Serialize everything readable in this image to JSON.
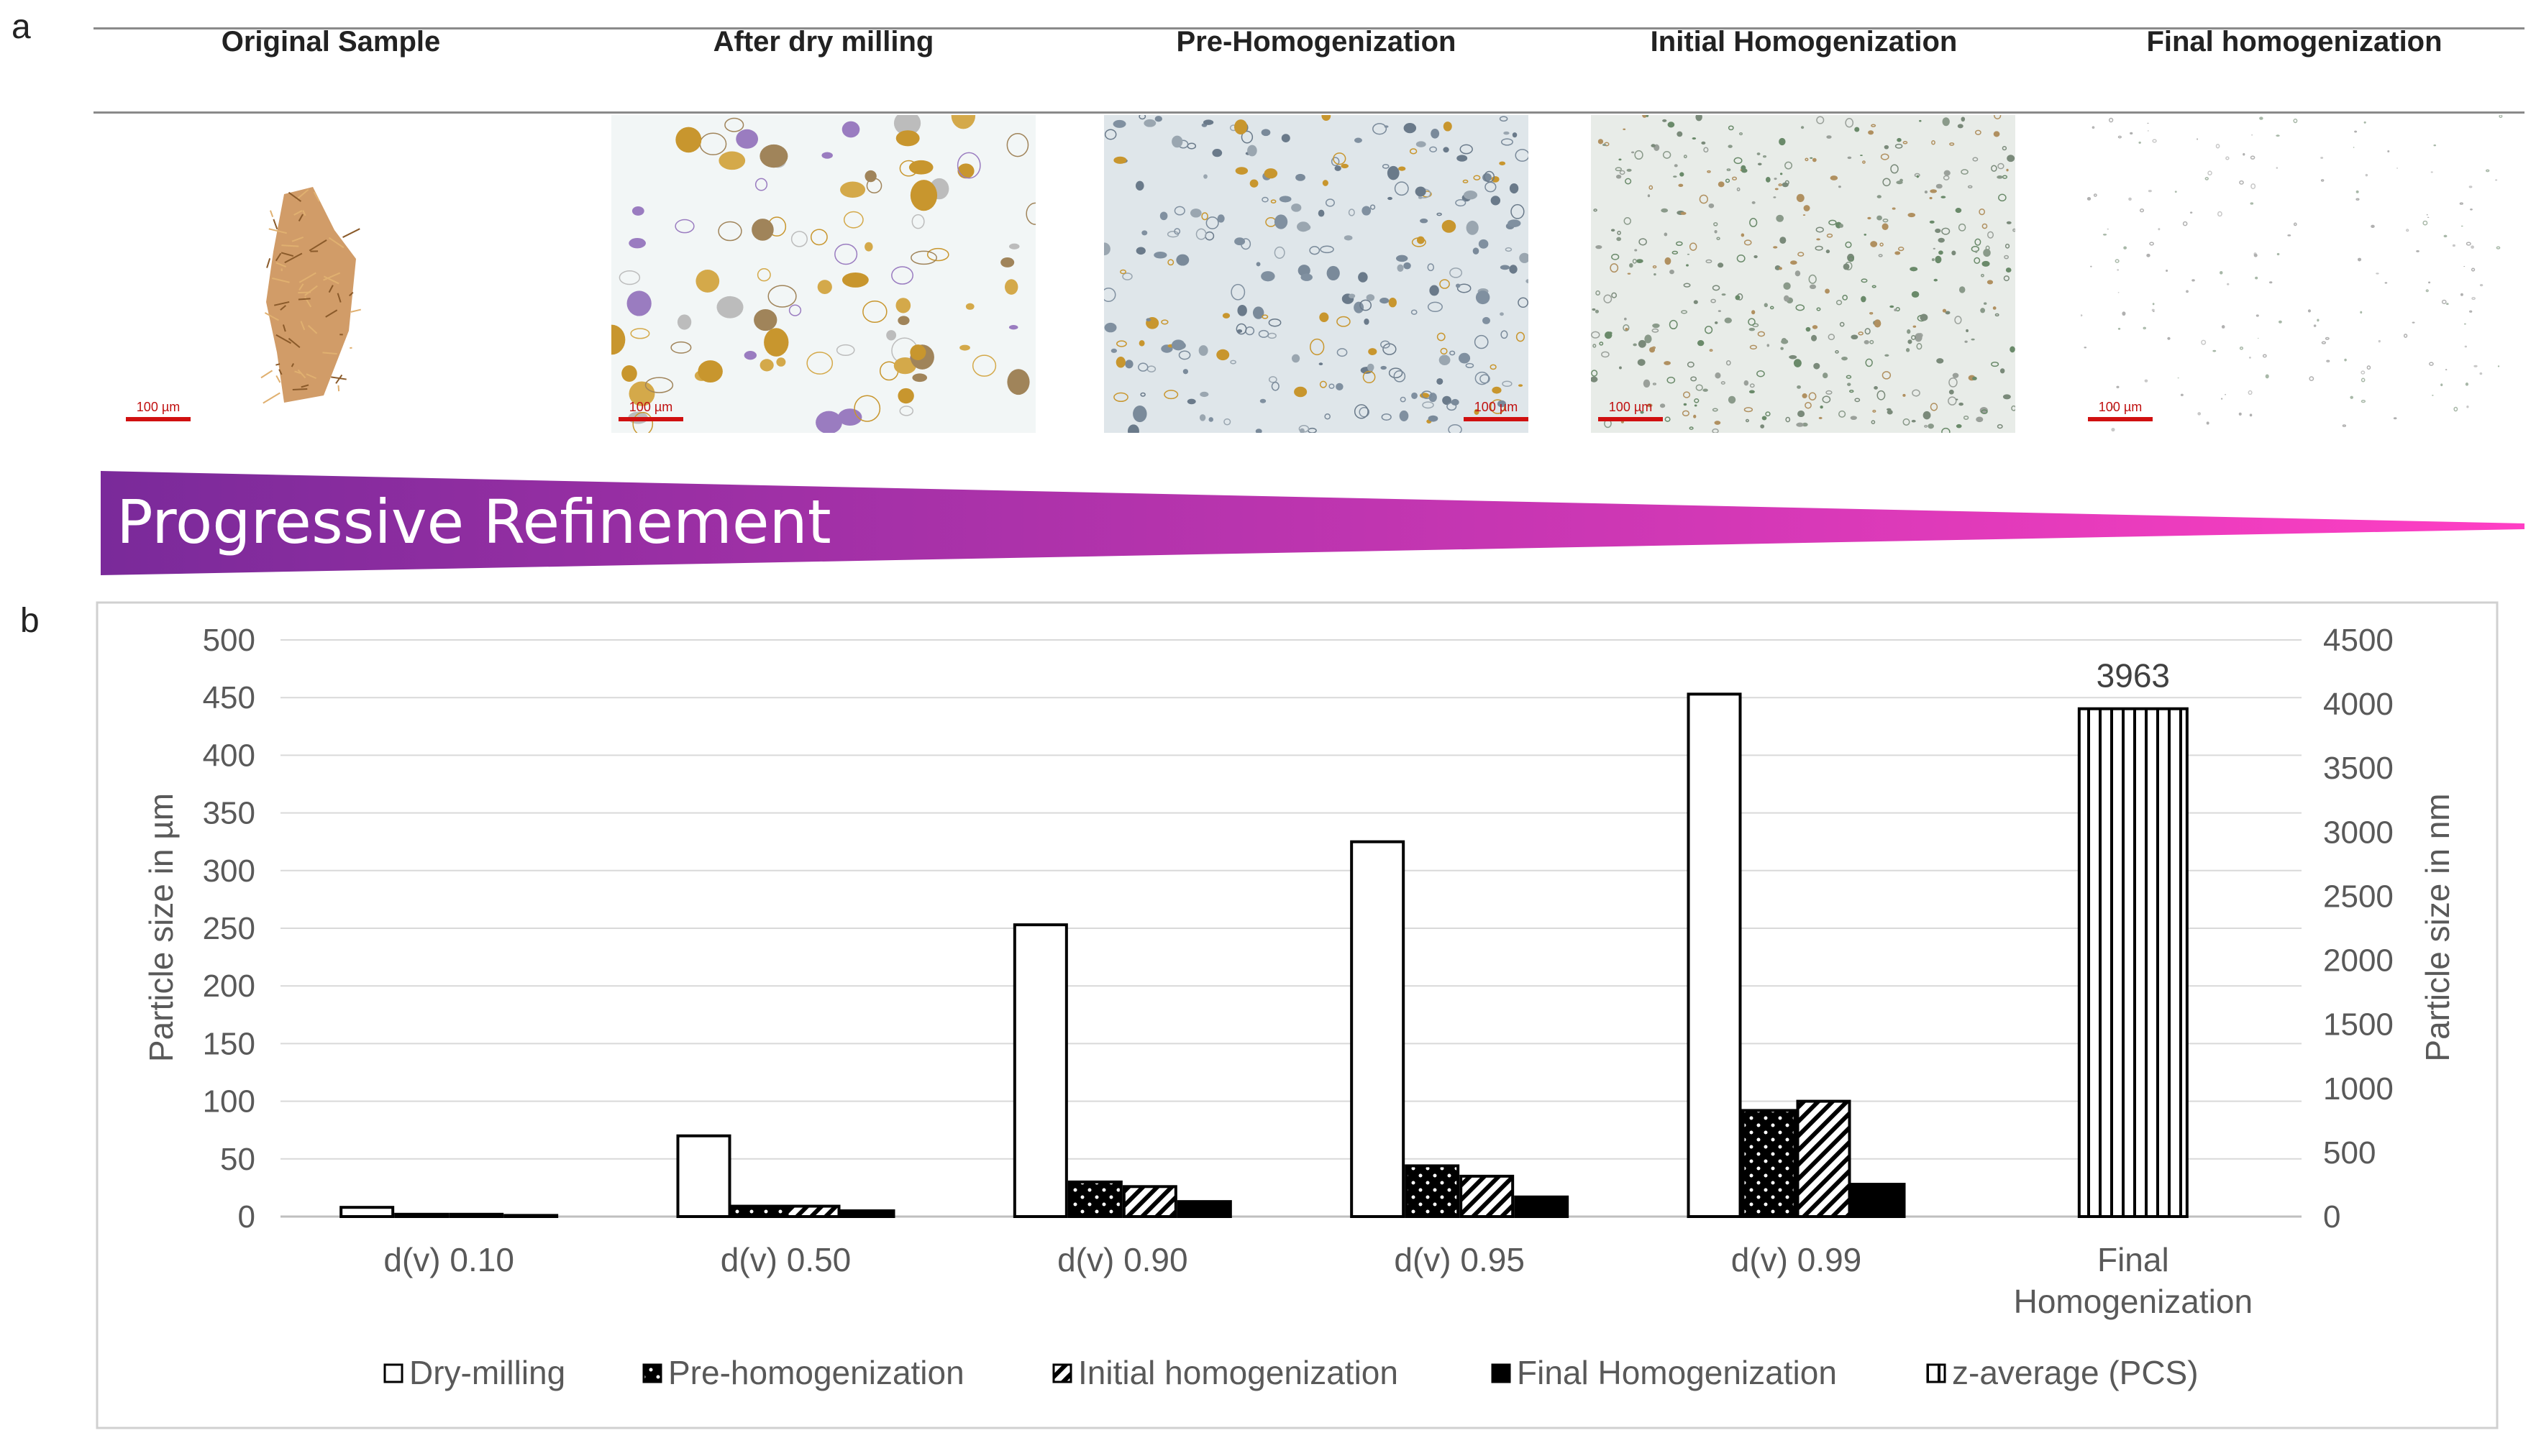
{
  "panel_a": {
    "label": "a",
    "stages": [
      "Original Sample",
      "After dry milling",
      "Pre-Homogenization",
      "Initial Homogenization",
      "Final homogenization"
    ],
    "scale_bars": [
      "100 µm",
      "100 µm",
      "100 µm",
      "100 µm",
      "100 µm"
    ],
    "banner": "Progressive Refinement",
    "banner_colors": [
      "#7a2a9a",
      "#ff3fc4"
    ]
  },
  "panel_b": {
    "label": "b"
  },
  "chart_data": {
    "type": "bar",
    "categories": [
      "d(v) 0.10",
      "d(v) 0.50",
      "d(v) 0.90",
      "d(v) 0.95",
      "d(v) 0.99",
      "Final Homogenization"
    ],
    "series": [
      {
        "name": "Dry-milling",
        "pattern": "empty",
        "axis": "left",
        "values": [
          8,
          70,
          253,
          325,
          453,
          null
        ]
      },
      {
        "name": "Pre-homogenization",
        "pattern": "dots",
        "axis": "left",
        "values": [
          2,
          9,
          30,
          44,
          92,
          null
        ]
      },
      {
        "name": "Initial homogenization",
        "pattern": "diagonal",
        "axis": "left",
        "values": [
          2,
          9,
          26,
          35,
          100,
          null
        ]
      },
      {
        "name": "Final Homogenization",
        "pattern": "solid",
        "axis": "left",
        "values": [
          1,
          5,
          13,
          17,
          28,
          null
        ]
      },
      {
        "name": "z-average (PCS)",
        "pattern": "vertical",
        "axis": "right",
        "values": [
          null,
          null,
          null,
          null,
          null,
          3963
        ]
      }
    ],
    "annotations": [
      {
        "category": "Final Homogenization",
        "text": "3963"
      }
    ],
    "ylabel": "Particle size in µm",
    "y2label": "Particle size in nm",
    "ylim": [
      0,
      500
    ],
    "y2lim": [
      0,
      4500
    ],
    "yticks": [
      "0",
      "50",
      "100",
      "150",
      "200",
      "250",
      "300",
      "350",
      "400",
      "450",
      "500"
    ],
    "y2ticks": [
      "0",
      "500",
      "1000",
      "1500",
      "2000",
      "2500",
      "3000",
      "3500",
      "4000",
      "4500"
    ],
    "grid": true,
    "legend": "bottom"
  }
}
